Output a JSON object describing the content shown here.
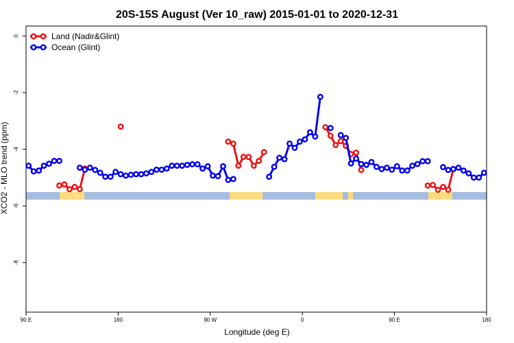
{
  "chart_data": {
    "type": "line",
    "title": "20S-15S August (Ver 10_raw)   2015-01-01 to 2020-12-31",
    "x_label": "Longitude (deg E)",
    "y_label": "XCO2 - MLO trend (ppm)",
    "xlim": [
      90,
      540
    ],
    "ylim": [
      -9.75,
      0.35
    ],
    "xticks": [
      {
        "value": 90,
        "label": "90 E"
      },
      180,
      {
        "value": 270,
        "label": "90 W"
      },
      {
        "value": 360,
        "label": "0"
      },
      {
        "value": 450,
        "label": "90 E"
      },
      {
        "value": 540,
        "label": "180"
      }
    ],
    "yticks": [
      0,
      -2,
      -4,
      -6,
      -8
    ],
    "legend": "top-left",
    "x": [
      92.5,
      97.5,
      102.5,
      107.5,
      112.5,
      117.5,
      122.5,
      127.5,
      132.5,
      137.5,
      142.5,
      147.5,
      152.5,
      157.5,
      162.5,
      167.5,
      172.5,
      177.5,
      182.5,
      187.5,
      192.5,
      197.5,
      202.5,
      207.5,
      212.5,
      217.5,
      222.5,
      227.5,
      232.5,
      237.5,
      242.5,
      247.5,
      252.5,
      257.5,
      262.5,
      267.5,
      272.5,
      277.5,
      282.5,
      287.5,
      292.5,
      297.5,
      302.5,
      307.5,
      312.5,
      317.5,
      322.5,
      327.5,
      332.5,
      337.5,
      342.5,
      347.5,
      352.5,
      357.5,
      362.5,
      367.5,
      372.5,
      377.5,
      382.5,
      387.5,
      392.5,
      397.5,
      402.5,
      407.5,
      412.5,
      417.5,
      422.5,
      427.5,
      432.5,
      437.5,
      442.5,
      447.5,
      452.5,
      457.5,
      462.5,
      467.5,
      472.5,
      477.5,
      482.5,
      487.5,
      492.5,
      497.5,
      502.5,
      507.5,
      512.5,
      517.5,
      522.5,
      527.5,
      532.5,
      537.5
    ],
    "series": [
      {
        "name": "Land (Nadir&Glint)",
        "color": "#ee1111",
        "values": [
          null,
          null,
          null,
          null,
          null,
          null,
          -5.28,
          -5.24,
          -5.41,
          -5.33,
          -5.41,
          -4.68,
          null,
          null,
          null,
          null,
          null,
          null,
          -3.2,
          null,
          null,
          null,
          null,
          null,
          null,
          null,
          null,
          null,
          null,
          null,
          null,
          null,
          null,
          null,
          null,
          null,
          null,
          null,
          null,
          -3.73,
          -3.8,
          -4.58,
          -4.27,
          -4.27,
          -4.58,
          -4.41,
          -4.1,
          null,
          null,
          null,
          null,
          null,
          null,
          null,
          null,
          null,
          null,
          null,
          -3.22,
          -3.52,
          -3.85,
          -3.71,
          -3.88,
          -4.17,
          -4.12,
          -4.73,
          null,
          null,
          null,
          null,
          null,
          null,
          null,
          null,
          null,
          null,
          null,
          null,
          -5.28,
          -5.26,
          -5.43,
          -5.33,
          -5.43,
          -4.7,
          null,
          null,
          null,
          null,
          null,
          null
        ]
      },
      {
        "name": "Ocean (Glint)",
        "color": "#0000ee",
        "values": [
          -4.58,
          -4.78,
          -4.75,
          -4.58,
          -4.51,
          -4.41,
          -4.41,
          null,
          null,
          null,
          -4.65,
          -4.72,
          -4.65,
          -4.73,
          -4.83,
          -4.97,
          -4.97,
          -4.8,
          -4.88,
          -4.93,
          -4.9,
          -4.88,
          -4.88,
          -4.85,
          -4.8,
          -4.72,
          -4.72,
          -4.68,
          -4.58,
          -4.58,
          -4.58,
          -4.55,
          -4.53,
          -4.53,
          -4.68,
          -4.6,
          -4.93,
          -4.95,
          -4.6,
          -5.08,
          -5.05,
          null,
          null,
          null,
          null,
          null,
          null,
          -4.97,
          -4.62,
          -4.3,
          -4.35,
          -3.8,
          -3.95,
          -3.73,
          -3.65,
          -3.4,
          -3.55,
          -2.15,
          null,
          -3.25,
          null,
          -3.5,
          -3.6,
          -4.5,
          -4.33,
          -4.52,
          -4.55,
          -4.45,
          -4.62,
          -4.7,
          -4.65,
          -4.72,
          -4.6,
          -4.75,
          -4.75,
          -4.58,
          -4.52,
          -4.42,
          -4.42,
          null,
          null,
          -4.63,
          -4.73,
          -4.7,
          -4.65,
          -4.75,
          -4.85,
          -5.0,
          -5.0,
          -4.83
        ]
      }
    ]
  }
}
